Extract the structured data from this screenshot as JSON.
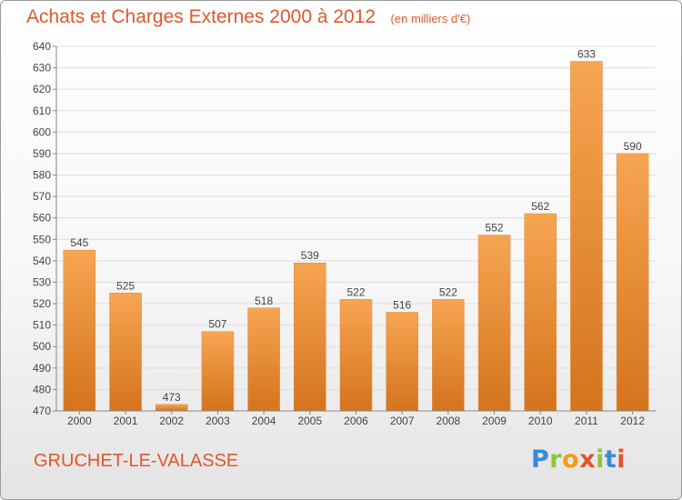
{
  "header": {
    "title": "Achats et Charges Externes 2000 à 2012",
    "subtitle": "(en milliers d'€)"
  },
  "footer": {
    "city": "GRUCHET-LE-VALASSE",
    "logo": [
      "P",
      "r",
      "o",
      "x",
      "i",
      "t",
      "i"
    ]
  },
  "colors": {
    "accent": "#e2572a",
    "bar_light": "#f7a552",
    "bar_dark": "#d4741d",
    "grid": "#dddddd",
    "axis": "#888888"
  },
  "chart_data": {
    "type": "bar",
    "title": "Achats et Charges Externes 2000 à 2012",
    "subtitle": "(en milliers d'€)",
    "categories": [
      "2000",
      "2001",
      "2002",
      "2003",
      "2004",
      "2005",
      "2006",
      "2007",
      "2008",
      "2009",
      "2010",
      "2011",
      "2012"
    ],
    "values": [
      545,
      525,
      473,
      507,
      518,
      539,
      522,
      516,
      522,
      552,
      562,
      633,
      590
    ],
    "ylim": [
      470,
      640
    ],
    "yticks": [
      470,
      480,
      490,
      500,
      510,
      520,
      530,
      540,
      550,
      560,
      570,
      580,
      590,
      600,
      610,
      620,
      630,
      640
    ],
    "grid": true,
    "legend": "none",
    "data_labels": true
  }
}
